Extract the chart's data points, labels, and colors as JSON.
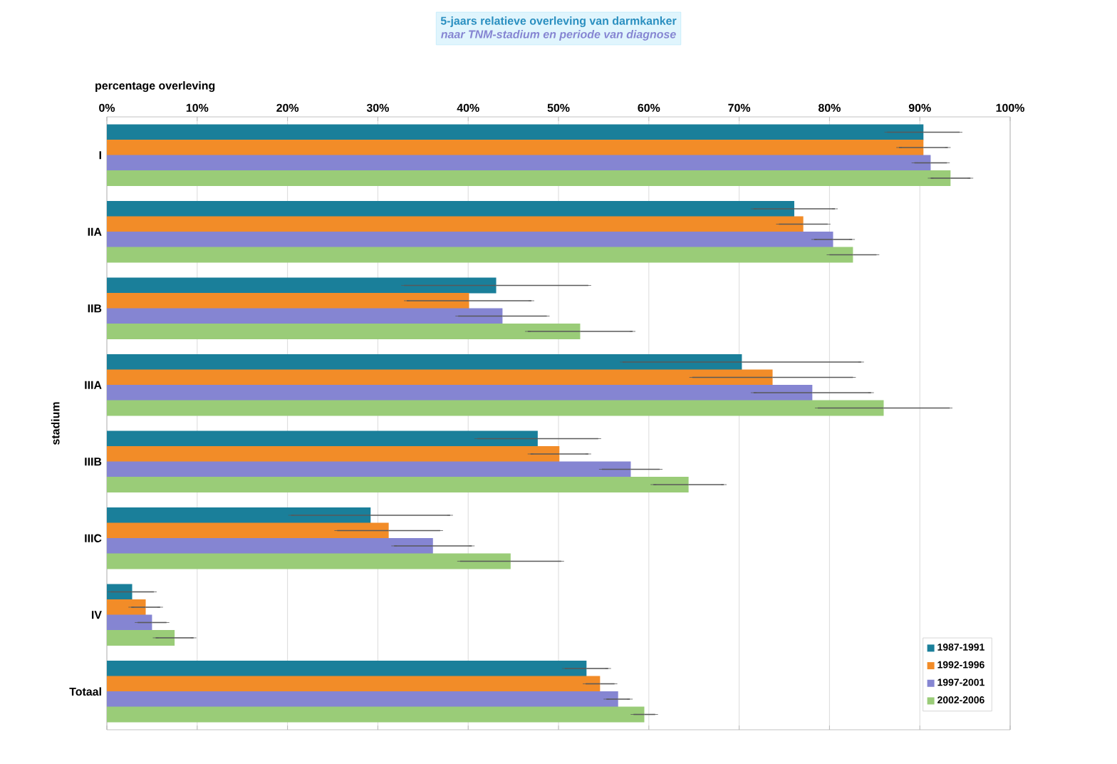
{
  "chart_data": {
    "type": "bar",
    "orientation": "horizontal",
    "title": "5-jaars relatieve overleving van darmkanker",
    "subtitle": "naar TNM-stadium en periode van diagnose",
    "xlabel": "percentage overleving",
    "ylabel": "stadium",
    "categories": [
      "I",
      "IIA",
      "IIB",
      "IIIA",
      "IIIB",
      "IIIC",
      "IV",
      "Totaal"
    ],
    "series": [
      {
        "name": "1987-1991",
        "color": "#1a7f9a",
        "values": [
          90.4,
          76.1,
          43.1,
          70.3,
          47.7,
          29.2,
          2.8,
          53.1
        ],
        "errors": [
          4.0,
          4.5,
          10.2,
          13.2,
          6.7,
          8.8,
          2.4,
          2.4
        ]
      },
      {
        "name": "1992-1996",
        "color": "#f28c28",
        "values": [
          90.4,
          77.1,
          40.1,
          73.7,
          50.1,
          31.2,
          4.3,
          54.6
        ],
        "errors": [
          2.7,
          2.7,
          6.9,
          8.9,
          3.2,
          5.7,
          1.6,
          1.6
        ]
      },
      {
        "name": "1997-2001",
        "color": "#8585d2",
        "values": [
          91.2,
          80.4,
          43.8,
          78.1,
          58.0,
          36.1,
          5.0,
          56.6
        ],
        "errors": [
          1.8,
          2.1,
          4.9,
          6.5,
          3.2,
          4.3,
          1.6,
          1.3
        ]
      },
      {
        "name": "2002-2006",
        "color": "#9acc78",
        "values": [
          93.4,
          82.6,
          52.4,
          86.0,
          64.4,
          44.7,
          7.5,
          59.5
        ],
        "errors": [
          2.2,
          2.6,
          5.8,
          7.3,
          3.9,
          5.6,
          2.1,
          1.2
        ]
      }
    ],
    "xlim": [
      0,
      100
    ],
    "xticks": [
      {
        "value": 0,
        "label": "0%"
      },
      {
        "value": 10,
        "label": "10%"
      },
      {
        "value": 20,
        "label": "20%"
      },
      {
        "value": 30,
        "label": "30%"
      },
      {
        "value": 40,
        "label": "40%"
      },
      {
        "value": 50,
        "label": "50%"
      },
      {
        "value": 60,
        "label": "60%"
      },
      {
        "value": 70,
        "label": "70%"
      },
      {
        "value": 80,
        "label": "80%"
      },
      {
        "value": 90,
        "label": "90%"
      },
      {
        "value": 100,
        "label": "100%"
      }
    ],
    "grid": "x",
    "legend": "bottom right"
  }
}
